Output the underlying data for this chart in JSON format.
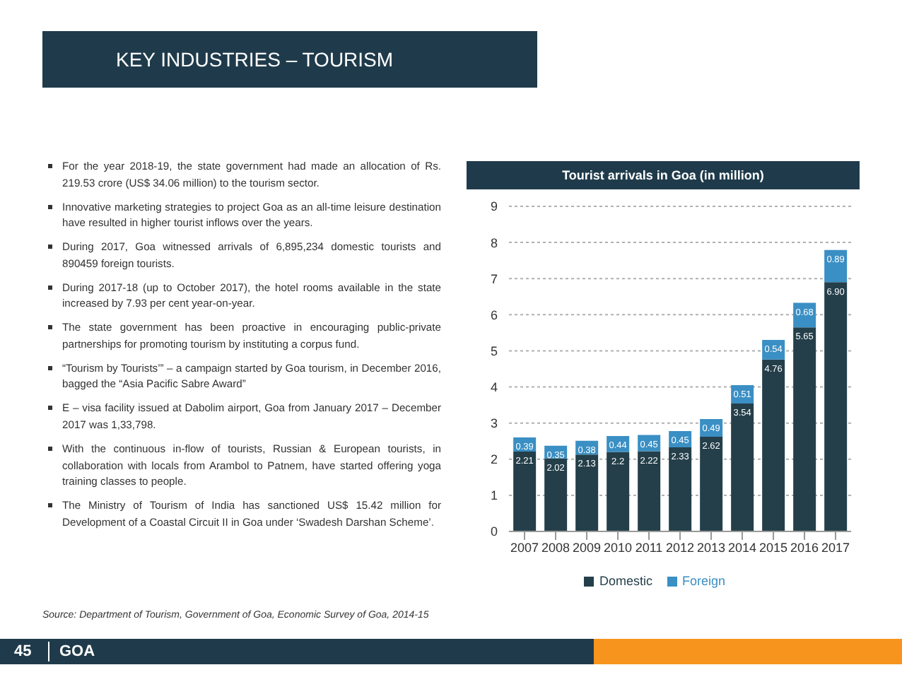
{
  "chart_data": {
    "type": "bar",
    "title": "Tourist arrivals in Goa (in million)",
    "categories": [
      "2007",
      "2008",
      "2009",
      "2010",
      "2011",
      "2012",
      "2013",
      "2014",
      "2015",
      "2016",
      "2017"
    ],
    "stacked": true,
    "series": [
      {
        "name": "Domestic",
        "color": "#243f4a",
        "values": [
          2.21,
          2.02,
          2.13,
          2.2,
          2.22,
          2.33,
          2.62,
          3.54,
          4.76,
          5.65,
          6.9
        ],
        "value_labels": [
          "2.21",
          "2.02",
          "2.13",
          "2.2",
          "2.22",
          "2.33",
          "2.62",
          "3.54",
          "4.76",
          "5.65",
          "6.90"
        ]
      },
      {
        "name": "Foreign",
        "color": "#3a8fc4",
        "values": [
          0.39,
          0.35,
          0.38,
          0.44,
          0.45,
          0.45,
          0.49,
          0.51,
          0.54,
          0.68,
          0.89
        ],
        "value_labels": [
          "0.39",
          "0.35",
          "0.38",
          "0.44",
          "0.45",
          "0.45",
          "0.49",
          "0.51",
          "0.54",
          "0.68",
          "0.89"
        ]
      }
    ],
    "ylim": [
      0,
      9
    ],
    "yticks": [
      0,
      1,
      2,
      3,
      4,
      5,
      6,
      7,
      8,
      9
    ],
    "grid": "y",
    "legend": "bottom",
    "annotations": [
      "KEY INDUSTRIES – TOURISM",
      "For the year 2018-19, the state government had made an allocation of Rs. 219.53 crore (US$ 34.06 million) to the tourism sector.",
      "Innovative marketing strategies to project Goa as an all-time leisure destination have resulted in higher tourist inflows over the years.",
      "During 2017, Goa witnessed arrivals of 6,895,234 domestic tourists and 890459 foreign tourists.",
      "During 2017-18 (up to October 2017), the hotel rooms available in the state increased by 7.93 per cent year-on-year.",
      "The state government has been proactive in encouraging public-private partnerships for promoting tourism by instituting a corpus fund.",
      "“Tourism by Tourists’” – a campaign started by Goa tourism, in December 2016, bagged the “Asia Pacific Sabre Award”",
      "E – visa facility issued at Dabolim airport, Goa from January 2017 – December 2017 was 1,33,798.",
      "With the continuous in-flow of tourists, Russian & European tourists, in collaboration with locals from Arambol to Patnem, have started offering yoga training classes to people.",
      "The Ministry of Tourism of India has sanctioned US$ 15.42 million for Development of a Coastal Circuit II in Goa under ‘Swadesh Darshan Scheme’.",
      "Source: Department of Tourism, Government of Goa, Economic Survey of Goa, 2014-15",
      "45",
      "GOA"
    ]
  }
}
